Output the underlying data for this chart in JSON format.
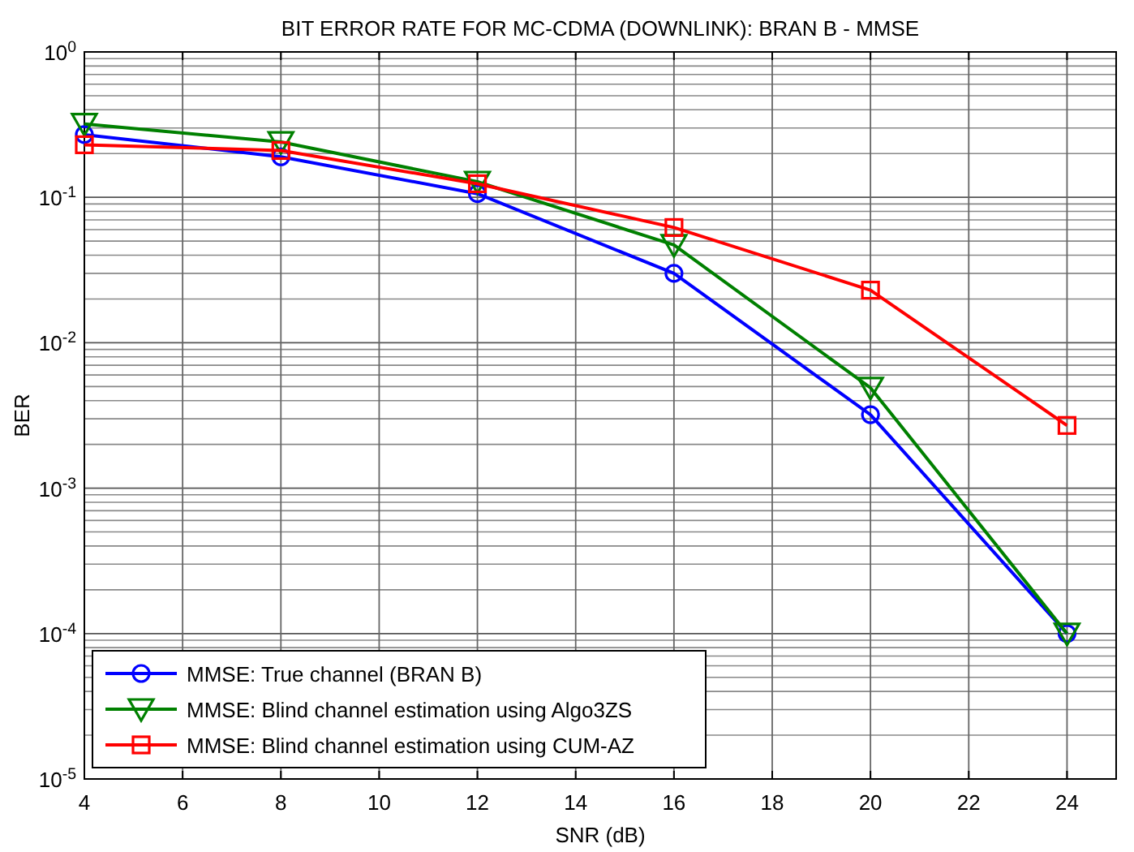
{
  "chart_data": {
    "type": "line",
    "title": "BIT ERROR RATE FOR MC-CDMA (DOWNLINK): BRAN B - MMSE",
    "xlabel": "SNR (dB)",
    "ylabel": "BER",
    "log": "y",
    "grid": true,
    "legend": "bottom left",
    "line_style": "solid",
    "x": [
      4,
      8,
      12,
      16,
      20,
      24
    ],
    "xlim": [
      4,
      25
    ],
    "xticks": [
      4,
      6,
      8,
      10,
      12,
      14,
      16,
      18,
      20,
      22,
      24
    ],
    "ylim": [
      1e-05,
      1
    ],
    "yticks": [
      {
        "value": 1,
        "label": "10$^{0}$"
      },
      {
        "value": 0.1,
        "label": "10$^{-1}$"
      },
      {
        "value": 0.01,
        "label": "10$^{-2}$"
      },
      {
        "value": 0.001,
        "label": "10$^{-3}$"
      },
      {
        "value": 0.0001,
        "label": "10$^{-4}$"
      },
      {
        "value": 1e-05,
        "label": "10$^{-5}$"
      }
    ],
    "series": [
      {
        "name": "MMSE: True channel (BRAN B)",
        "color": "#0000ff",
        "marker": "circle",
        "values": [
          0.27,
          0.19,
          0.106,
          0.03,
          0.0032,
          0.0001
        ]
      },
      {
        "name": "MMSE: Blind channel estimation using Algo3ZS",
        "color": "#008000",
        "marker": "triangle",
        "values": [
          0.32,
          0.24,
          0.128,
          0.047,
          0.0049,
          0.0001
        ]
      },
      {
        "name": "MMSE: Blind channel estimation using CUM-AZ",
        "color": "#ff0000",
        "marker": "square",
        "values": [
          0.23,
          0.21,
          0.124,
          0.062,
          0.023,
          0.0027
        ]
      }
    ]
  }
}
